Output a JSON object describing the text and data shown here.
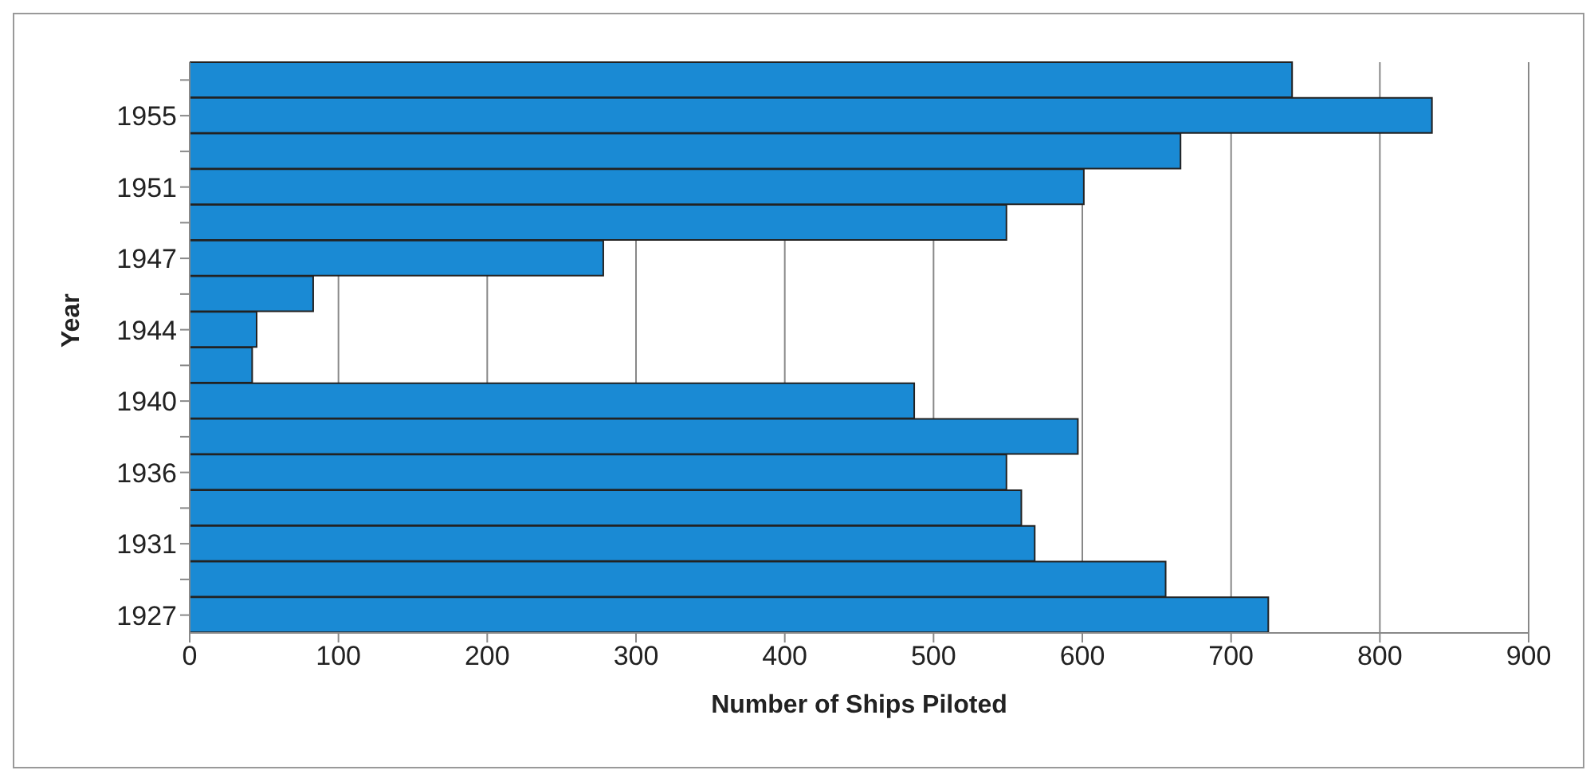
{
  "chart_data": {
    "type": "bar",
    "orientation": "horizontal",
    "xlabel": "Number of Ships Piloted",
    "ylabel": "Year",
    "categories": [
      null,
      "1955",
      null,
      "1951",
      null,
      "1947",
      null,
      "1944",
      null,
      "1940",
      null,
      "1936",
      null,
      "1931",
      null,
      "1927"
    ],
    "values": [
      741,
      835,
      666,
      601,
      549,
      278,
      83,
      45,
      42,
      487,
      597,
      549,
      559,
      568,
      656,
      725
    ],
    "color": "#1a8ad4",
    "xlim": [
      0,
      900
    ],
    "xticks": [
      0,
      100,
      200,
      300,
      400,
      500,
      600,
      700,
      800,
      900
    ],
    "grid": "x",
    "legend": false
  }
}
